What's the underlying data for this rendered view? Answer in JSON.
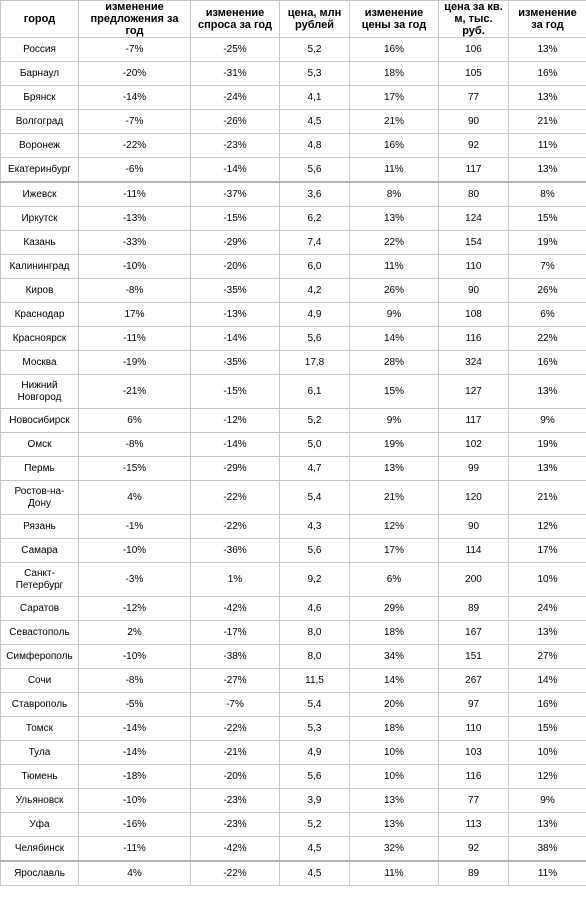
{
  "headers": [
    "город",
    "изменение предложения за год",
    "изменение спроса за год",
    "цена, млн рублей",
    "изменение цены за год",
    "цена за кв. м, тыс. руб.",
    "изменение за год"
  ],
  "rows": [
    [
      "Россия",
      "-7%",
      "-25%",
      "5,2",
      "16%",
      "106",
      "13%"
    ],
    [
      "Барнаул",
      "-20%",
      "-31%",
      "5,3",
      "18%",
      "105",
      "16%"
    ],
    [
      "Брянск",
      "-14%",
      "-24%",
      "4,1",
      "17%",
      "77",
      "13%"
    ],
    [
      "Волгоград",
      "-7%",
      "-26%",
      "4,5",
      "21%",
      "90",
      "21%"
    ],
    [
      "Воронеж",
      "-22%",
      "-23%",
      "4,8",
      "16%",
      "92",
      "11%"
    ],
    [
      "Екатеринбург",
      "-6%",
      "-14%",
      "5,6",
      "11%",
      "117",
      "13%"
    ],
    [
      "Ижевск",
      "-11%",
      "-37%",
      "3,6",
      "8%",
      "80",
      "8%"
    ],
    [
      "Иркутск",
      "-13%",
      "-15%",
      "6,2",
      "13%",
      "124",
      "15%"
    ],
    [
      "Казань",
      "-33%",
      "-29%",
      "7,4",
      "22%",
      "154",
      "19%"
    ],
    [
      "Калининград",
      "-10%",
      "-20%",
      "6,0",
      "11%",
      "110",
      "7%"
    ],
    [
      "Киров",
      "-8%",
      "-35%",
      "4,2",
      "26%",
      "90",
      "26%"
    ],
    [
      "Краснодар",
      "17%",
      "-13%",
      "4,9",
      "9%",
      "108",
      "6%"
    ],
    [
      "Красноярск",
      "-11%",
      "-14%",
      "5,6",
      "14%",
      "116",
      "22%"
    ],
    [
      "Москва",
      "-19%",
      "-35%",
      "17,8",
      "28%",
      "324",
      "16%"
    ],
    [
      "Нижний Новгород",
      "-21%",
      "-15%",
      "6,1",
      "15%",
      "127",
      "13%"
    ],
    [
      "Новосибирск",
      "6%",
      "-12%",
      "5,2",
      "9%",
      "117",
      "9%"
    ],
    [
      "Омск",
      "-8%",
      "-14%",
      "5,0",
      "19%",
      "102",
      "19%"
    ],
    [
      "Пермь",
      "-15%",
      "-29%",
      "4,7",
      "13%",
      "99",
      "13%"
    ],
    [
      "Ростов-на-Дону",
      "4%",
      "-22%",
      "5,4",
      "21%",
      "120",
      "21%"
    ],
    [
      "Рязань",
      "-1%",
      "-22%",
      "4,3",
      "12%",
      "90",
      "12%"
    ],
    [
      "Самара",
      "-10%",
      "-36%",
      "5,6",
      "17%",
      "114",
      "17%"
    ],
    [
      "Санкт-Петербург",
      "-3%",
      "1%",
      "9,2",
      "6%",
      "200",
      "10%"
    ],
    [
      "Саратов",
      "-12%",
      "-42%",
      "4,6",
      "29%",
      "89",
      "24%"
    ],
    [
      "Севастополь",
      "2%",
      "-17%",
      "8,0",
      "18%",
      "167",
      "13%"
    ],
    [
      "Симферополь",
      "-10%",
      "-38%",
      "8,0",
      "34%",
      "151",
      "27%"
    ],
    [
      "Сочи",
      "-8%",
      "-27%",
      "11,5",
      "14%",
      "267",
      "14%"
    ],
    [
      "Ставрополь",
      "-5%",
      "-7%",
      "5,4",
      "20%",
      "97",
      "16%"
    ],
    [
      "Томск",
      "-14%",
      "-22%",
      "5,3",
      "18%",
      "110",
      "15%"
    ],
    [
      "Тула",
      "-14%",
      "-21%",
      "4,9",
      "10%",
      "103",
      "10%"
    ],
    [
      "Тюмень",
      "-18%",
      "-20%",
      "5,6",
      "10%",
      "116",
      "12%"
    ],
    [
      "Ульяновск",
      "-10%",
      "-23%",
      "3,9",
      "13%",
      "77",
      "9%"
    ],
    [
      "Уфа",
      "-16%",
      "-23%",
      "5,2",
      "13%",
      "113",
      "13%"
    ],
    [
      "Челябинск",
      "-11%",
      "-42%",
      "4,5",
      "32%",
      "92",
      "38%"
    ],
    [
      "Ярославль",
      "4%",
      "-22%",
      "4,5",
      "11%",
      "89",
      "11%"
    ]
  ]
}
